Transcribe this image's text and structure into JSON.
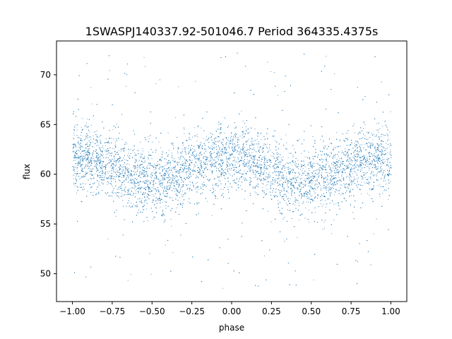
{
  "chart_data": {
    "type": "scatter",
    "title": "1SWASPJ140337.92-501046.7 Period 364335.4375s",
    "xlabel": "phase",
    "ylabel": "flux",
    "xlim": [
      -1.1,
      1.1
    ],
    "ylim": [
      47.2,
      73.4
    ],
    "xticks": [
      -1.0,
      -0.75,
      -0.5,
      -0.25,
      0.0,
      0.25,
      0.5,
      0.75,
      1.0
    ],
    "xtick_labels": [
      "−1.00",
      "−0.75",
      "−0.50",
      "−0.25",
      "0.00",
      "0.25",
      "0.50",
      "0.75",
      "1.00"
    ],
    "yticks": [
      50,
      55,
      60,
      65,
      70
    ],
    "ytick_labels": [
      "50",
      "55",
      "60",
      "65",
      "70"
    ],
    "grid": false,
    "legend": "none",
    "color": "#1f77b4",
    "series": [
      {
        "x_range": [
          -1.0,
          1.0
        ],
        "description": "phase-folded light curve, dense point cloud",
        "profile": [
          {
            "x": -1.0,
            "y_mean": 61.5,
            "y_spread": 2.3
          },
          {
            "x": -0.9,
            "y_mean": 61.8,
            "y_spread": 2.3
          },
          {
            "x": -0.8,
            "y_mean": 61.2,
            "y_spread": 2.2
          },
          {
            "x": -0.7,
            "y_mean": 60.4,
            "y_spread": 2.2
          },
          {
            "x": -0.6,
            "y_mean": 59.6,
            "y_spread": 2.3
          },
          {
            "x": -0.5,
            "y_mean": 59.2,
            "y_spread": 2.4
          },
          {
            "x": -0.4,
            "y_mean": 59.5,
            "y_spread": 2.3
          },
          {
            "x": -0.3,
            "y_mean": 60.3,
            "y_spread": 2.3
          },
          {
            "x": -0.2,
            "y_mean": 61.1,
            "y_spread": 2.2
          },
          {
            "x": -0.1,
            "y_mean": 61.6,
            "y_spread": 2.2
          },
          {
            "x": 0.0,
            "y_mean": 61.7,
            "y_spread": 2.2
          },
          {
            "x": 0.1,
            "y_mean": 61.5,
            "y_spread": 2.2
          },
          {
            "x": 0.2,
            "y_mean": 60.9,
            "y_spread": 2.2
          },
          {
            "x": 0.3,
            "y_mean": 60.1,
            "y_spread": 2.3
          },
          {
            "x": 0.4,
            "y_mean": 59.4,
            "y_spread": 2.4
          },
          {
            "x": 0.5,
            "y_mean": 59.2,
            "y_spread": 2.4
          },
          {
            "x": 0.6,
            "y_mean": 59.6,
            "y_spread": 2.3
          },
          {
            "x": 0.7,
            "y_mean": 60.5,
            "y_spread": 2.3
          },
          {
            "x": 0.8,
            "y_mean": 61.2,
            "y_spread": 2.3
          },
          {
            "x": 0.9,
            "y_mean": 61.6,
            "y_spread": 2.3
          },
          {
            "x": 1.0,
            "y_mean": 61.5,
            "y_spread": 2.3
          }
        ],
        "outlier_range": [
          48.5,
          72.5
        ]
      }
    ]
  }
}
